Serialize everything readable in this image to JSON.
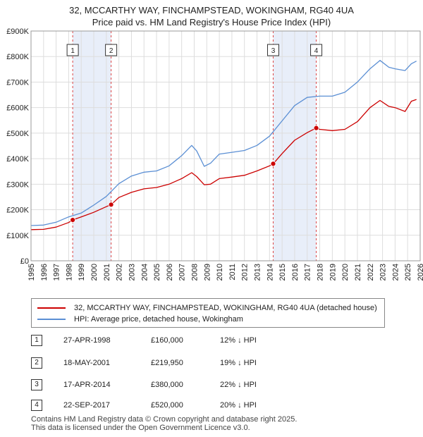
{
  "title_line1": "32, MCCARTHY WAY, FINCHAMPSTEAD, WOKINGHAM, RG40 4UA",
  "title_line2": "Price paid vs. HM Land Registry's House Price Index (HPI)",
  "colors": {
    "property": "#cc0000",
    "hpi": "#5b8fd4",
    "shade": "#e8eef9",
    "marker_line": "#dd4444"
  },
  "legend": {
    "property_label": "32, MCCARTHY WAY, FINCHAMPSTEAD, WOKINGHAM, RG40 4UA (detached house)",
    "hpi_label": "HPI: Average price, detached house, Wokingham"
  },
  "sales": [
    {
      "num": "1",
      "date": "27-APR-1998",
      "price": "£160,000",
      "hpi": "12% ↓ HPI"
    },
    {
      "num": "2",
      "date": "18-MAY-2001",
      "price": "£219,950",
      "hpi": "19% ↓ HPI"
    },
    {
      "num": "3",
      "date": "17-APR-2014",
      "price": "£380,000",
      "hpi": "22% ↓ HPI"
    },
    {
      "num": "4",
      "date": "22-SEP-2017",
      "price": "£520,000",
      "hpi": "20% ↓ HPI"
    }
  ],
  "footer": {
    "line1": "Contains HM Land Registry data © Crown copyright and database right 2025.",
    "line2": "This data is licensed under the Open Government Licence v3.0."
  },
  "chart_data": {
    "type": "line",
    "title": "32, MCCARTHY WAY, FINCHAMPSTEAD, WOKINGHAM, RG40 4UA — Price paid vs. HM Land Registry's House Price Index (HPI)",
    "xlim": [
      1995,
      2026
    ],
    "ylim": [
      0,
      900000
    ],
    "xticks": [
      "1995",
      "1996",
      "1997",
      "1998",
      "1999",
      "2000",
      "2001",
      "2002",
      "2003",
      "2004",
      "2005",
      "2006",
      "2007",
      "2008",
      "2009",
      "2010",
      "2011",
      "2012",
      "2013",
      "2014",
      "2015",
      "2016",
      "2017",
      "2018",
      "2019",
      "2020",
      "2021",
      "2022",
      "2023",
      "2024",
      "2025",
      "2026"
    ],
    "yticks": [
      {
        "value": 0,
        "label": "£0"
      },
      {
        "value": 100000,
        "label": "£100K"
      },
      {
        "value": 200000,
        "label": "£200K"
      },
      {
        "value": 300000,
        "label": "£300K"
      },
      {
        "value": 400000,
        "label": "£400K"
      },
      {
        "value": 500000,
        "label": "£500K"
      },
      {
        "value": 600000,
        "label": "£600K"
      },
      {
        "value": 700000,
        "label": "£700K"
      },
      {
        "value": 800000,
        "label": "£800K"
      },
      {
        "value": 900000,
        "label": "£900K"
      }
    ],
    "shaded_ranges": [
      [
        1998.32,
        2001.38
      ],
      [
        2014.29,
        2017.72
      ]
    ],
    "sale_points": [
      {
        "label": "1",
        "x": 1998.32,
        "y": 160000
      },
      {
        "label": "2",
        "x": 2001.38,
        "y": 219950
      },
      {
        "label": "3",
        "x": 2014.29,
        "y": 380000
      },
      {
        "label": "4",
        "x": 2017.72,
        "y": 520000
      }
    ],
    "series": [
      {
        "name": "32, MCCARTHY WAY, FINCHAMPSTEAD, WOKINGHAM, RG40 4UA (detached house)",
        "color": "#cc0000",
        "points": [
          [
            1995,
            122000
          ],
          [
            1996,
            123000
          ],
          [
            1997,
            132000
          ],
          [
            1998,
            150000
          ],
          [
            1998.32,
            160000
          ],
          [
            1999,
            172000
          ],
          [
            2000,
            190000
          ],
          [
            2001,
            212000
          ],
          [
            2001.38,
            219950
          ],
          [
            2002,
            248000
          ],
          [
            2003,
            268000
          ],
          [
            2004,
            282000
          ],
          [
            2005,
            287000
          ],
          [
            2006,
            300000
          ],
          [
            2007,
            322000
          ],
          [
            2007.8,
            345000
          ],
          [
            2008.2,
            330000
          ],
          [
            2008.8,
            298000
          ],
          [
            2009.3,
            300000
          ],
          [
            2010,
            322000
          ],
          [
            2011,
            328000
          ],
          [
            2012,
            335000
          ],
          [
            2013,
            352000
          ],
          [
            2014,
            372000
          ],
          [
            2014.29,
            380000
          ],
          [
            2015,
            420000
          ],
          [
            2016,
            472000
          ],
          [
            2017,
            502000
          ],
          [
            2017.72,
            520000
          ],
          [
            2018,
            515000
          ],
          [
            2019,
            510000
          ],
          [
            2020,
            515000
          ],
          [
            2021,
            545000
          ],
          [
            2022,
            600000
          ],
          [
            2022.8,
            628000
          ],
          [
            2023.5,
            605000
          ],
          [
            2024,
            600000
          ],
          [
            2024.8,
            585000
          ],
          [
            2025.3,
            625000
          ],
          [
            2025.7,
            632000
          ]
        ]
      },
      {
        "name": "HPI: Average price, detached house, Wokingham",
        "color": "#5b8fd4",
        "points": [
          [
            1995,
            138000
          ],
          [
            1996,
            140000
          ],
          [
            1997,
            151000
          ],
          [
            1998,
            172000
          ],
          [
            1999,
            187000
          ],
          [
            2000,
            218000
          ],
          [
            2001,
            252000
          ],
          [
            2002,
            302000
          ],
          [
            2003,
            332000
          ],
          [
            2004,
            347000
          ],
          [
            2005,
            352000
          ],
          [
            2006,
            372000
          ],
          [
            2007,
            412000
          ],
          [
            2007.8,
            452000
          ],
          [
            2008.2,
            430000
          ],
          [
            2008.8,
            370000
          ],
          [
            2009.3,
            382000
          ],
          [
            2010,
            418000
          ],
          [
            2011,
            425000
          ],
          [
            2012,
            432000
          ],
          [
            2013,
            452000
          ],
          [
            2014,
            488000
          ],
          [
            2015,
            548000
          ],
          [
            2016,
            608000
          ],
          [
            2017,
            640000
          ],
          [
            2018,
            645000
          ],
          [
            2019,
            645000
          ],
          [
            2020,
            660000
          ],
          [
            2021,
            700000
          ],
          [
            2022,
            752000
          ],
          [
            2022.8,
            785000
          ],
          [
            2023.5,
            758000
          ],
          [
            2024,
            752000
          ],
          [
            2024.8,
            745000
          ],
          [
            2025.3,
            772000
          ],
          [
            2025.7,
            782000
          ]
        ]
      }
    ]
  }
}
